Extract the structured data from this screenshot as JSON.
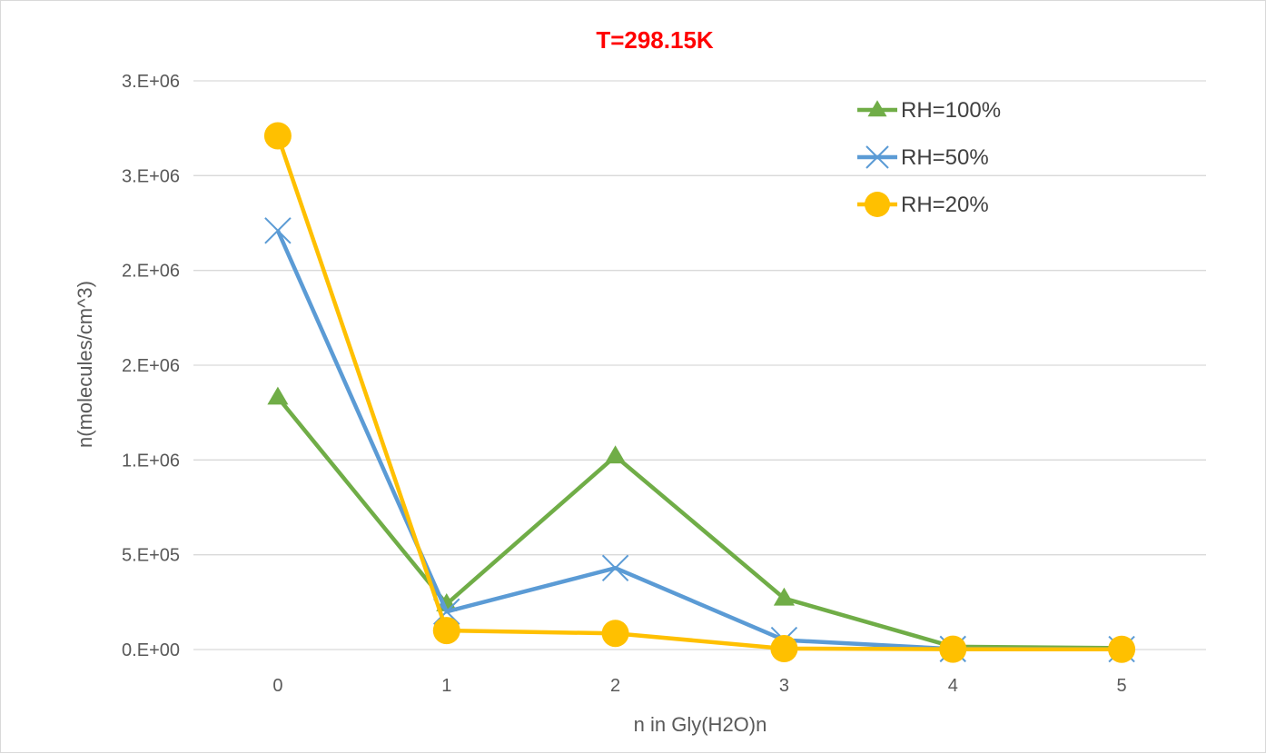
{
  "chart_data": {
    "type": "line",
    "title": "T=298.15K",
    "title_color": "#ff0000",
    "xlabel": "n in Gly(H2O)n",
    "ylabel": "n(molecules/cm^3)",
    "categories": [
      "0",
      "1",
      "2",
      "3",
      "4",
      "5"
    ],
    "ylim": [
      0,
      3000000
    ],
    "y_ticks": [
      0,
      500000,
      1000000,
      1500000,
      2000000,
      2500000,
      3000000
    ],
    "y_tick_labels": [
      "0.E+00",
      "5.E+05",
      "1.E+06",
      "2.E+06",
      "2.E+06",
      "3.E+06",
      "3.E+06"
    ],
    "grid": "horizontal",
    "legend_position": "top-right",
    "series": [
      {
        "name": "RH=100%",
        "color": "#70ad47",
        "marker": "triangle",
        "values": [
          1330000,
          240000,
          1020000,
          270000,
          15000,
          8000
        ]
      },
      {
        "name": "RH=50%",
        "color": "#5b9bd5",
        "marker": "x",
        "values": [
          2210000,
          200000,
          430000,
          50000,
          3000,
          2000
        ]
      },
      {
        "name": "RH=20%",
        "color": "#ffc000",
        "marker": "circle",
        "values": [
          2710000,
          100000,
          85000,
          5000,
          2000,
          1000
        ]
      }
    ]
  }
}
